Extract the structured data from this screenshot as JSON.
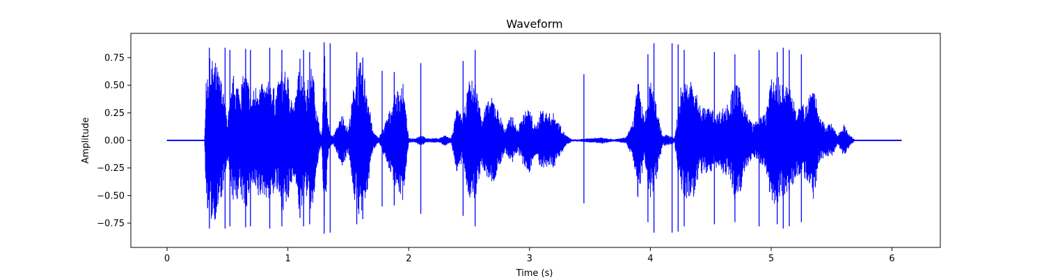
{
  "chart_data": {
    "type": "line",
    "title": "Waveform",
    "xlabel": "Time (s)",
    "ylabel": "Amplitude",
    "xlim": [
      -0.3,
      6.4
    ],
    "ylim": [
      -0.97,
      0.97
    ],
    "xticks": [
      0,
      1,
      2,
      3,
      4,
      5,
      6
    ],
    "yticks": [
      -0.75,
      -0.5,
      -0.25,
      0.0,
      0.25,
      0.5,
      0.75
    ],
    "ytick_labels": [
      "−0.75",
      "−0.50",
      "−0.25",
      "0.00",
      "0.25",
      "0.50",
      "0.75"
    ],
    "duration": 6.08,
    "grid": false,
    "series": [
      {
        "color": "#0000ff",
        "envelope": {
          "t": [
            0.0,
            0.31,
            0.32,
            0.35,
            0.4,
            0.45,
            0.5,
            0.55,
            0.6,
            0.65,
            0.7,
            0.75,
            0.8,
            0.85,
            0.9,
            0.95,
            1.0,
            1.05,
            1.1,
            1.15,
            1.2,
            1.25,
            1.28,
            1.3,
            1.33,
            1.35,
            1.38,
            1.45,
            1.5,
            1.55,
            1.6,
            1.65,
            1.7,
            1.75,
            1.8,
            1.85,
            1.9,
            1.95,
            2.0,
            2.05,
            2.1,
            2.15,
            2.2,
            2.25,
            2.3,
            2.35,
            2.4,
            2.45,
            2.5,
            2.55,
            2.6,
            2.65,
            2.7,
            2.75,
            2.8,
            2.85,
            2.9,
            2.95,
            3.0,
            3.05,
            3.1,
            3.15,
            3.2,
            3.25,
            3.3,
            3.35,
            3.4,
            3.5,
            3.6,
            3.7,
            3.8,
            3.85,
            3.9,
            3.95,
            4.0,
            4.05,
            4.1,
            4.15,
            4.2,
            4.25,
            4.3,
            4.35,
            4.4,
            4.45,
            4.5,
            4.55,
            4.6,
            4.65,
            4.7,
            4.75,
            4.8,
            4.85,
            4.9,
            4.95,
            5.0,
            5.05,
            5.1,
            5.15,
            5.2,
            5.25,
            5.3,
            5.35,
            5.4,
            5.45,
            5.5,
            5.55,
            5.6,
            5.65,
            5.7,
            5.8,
            6.08
          ],
          "top": [
            0.0,
            0.0,
            0.5,
            0.75,
            0.72,
            0.55,
            0.2,
            0.6,
            0.5,
            0.65,
            0.42,
            0.55,
            0.5,
            0.55,
            0.45,
            0.65,
            0.6,
            0.3,
            0.72,
            0.5,
            0.7,
            0.2,
            0.03,
            0.88,
            0.2,
            0.05,
            0.05,
            0.25,
            0.1,
            0.55,
            0.72,
            0.55,
            0.1,
            0.02,
            0.15,
            0.3,
            0.45,
            0.55,
            0.02,
            0.02,
            0.05,
            0.02,
            0.02,
            0.02,
            0.05,
            0.02,
            0.3,
            0.2,
            0.55,
            0.55,
            0.25,
            0.35,
            0.4,
            0.25,
            0.1,
            0.25,
            0.1,
            0.25,
            0.3,
            0.12,
            0.3,
            0.25,
            0.25,
            0.15,
            0.05,
            0.01,
            0.01,
            0.02,
            0.03,
            0.01,
            0.03,
            0.15,
            0.55,
            0.2,
            0.55,
            0.35,
            0.05,
            0.05,
            0.02,
            0.5,
            0.55,
            0.55,
            0.35,
            0.3,
            0.3,
            0.25,
            0.3,
            0.35,
            0.55,
            0.45,
            0.25,
            0.15,
            0.2,
            0.25,
            0.55,
            0.6,
            0.5,
            0.5,
            0.35,
            0.3,
            0.4,
            0.55,
            0.2,
            0.15,
            0.15,
            0.05,
            0.15,
            0.05,
            0.0,
            0.0,
            0.0
          ]
        },
        "spikes": [
          {
            "t": 0.35,
            "a": 0.84
          },
          {
            "t": 0.48,
            "a": 0.84
          },
          {
            "t": 0.52,
            "a": 0.82
          },
          {
            "t": 0.65,
            "a": 0.83
          },
          {
            "t": 0.69,
            "a": 0.82
          },
          {
            "t": 0.85,
            "a": 0.84
          },
          {
            "t": 0.95,
            "a": 0.82
          },
          {
            "t": 1.1,
            "a": 0.74
          },
          {
            "t": 1.13,
            "a": 0.82
          },
          {
            "t": 1.18,
            "a": 0.8
          },
          {
            "t": 1.3,
            "a": 0.89
          },
          {
            "t": 1.35,
            "a": 0.88
          },
          {
            "t": 1.57,
            "a": 0.8
          },
          {
            "t": 1.62,
            "a": 0.75
          },
          {
            "t": 1.78,
            "a": 0.63
          },
          {
            "t": 1.88,
            "a": 0.62
          },
          {
            "t": 2.1,
            "a": 0.7
          },
          {
            "t": 2.45,
            "a": 0.72
          },
          {
            "t": 2.55,
            "a": 0.82
          },
          {
            "t": 3.45,
            "a": 0.6
          },
          {
            "t": 3.98,
            "a": 0.78
          },
          {
            "t": 4.03,
            "a": 0.88
          },
          {
            "t": 4.18,
            "a": 0.88
          },
          {
            "t": 4.23,
            "a": 0.87
          },
          {
            "t": 4.28,
            "a": 0.82
          },
          {
            "t": 4.53,
            "a": 0.8
          },
          {
            "t": 4.7,
            "a": 0.78
          },
          {
            "t": 4.9,
            "a": 0.82
          },
          {
            "t": 5.05,
            "a": 0.8
          },
          {
            "t": 5.1,
            "a": 0.84
          },
          {
            "t": 5.15,
            "a": 0.82
          },
          {
            "t": 5.25,
            "a": 0.78
          }
        ]
      }
    ]
  }
}
